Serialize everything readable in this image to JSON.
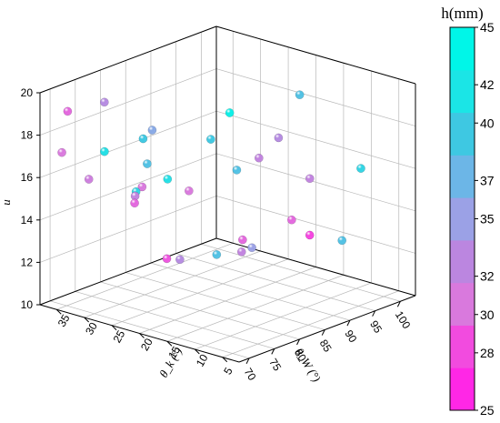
{
  "chart_data": {
    "type": "scatter",
    "title": "",
    "x_axis": {
      "label": "θ_W (°)",
      "range": [
        68,
        103
      ],
      "ticks": [
        70,
        75,
        80,
        85,
        90,
        95,
        100
      ],
      "tick_labels": [
        "70",
        "75",
        "80",
        "85",
        "90",
        "95",
        "100"
      ]
    },
    "y_axis": {
      "label": "θ_k (°)",
      "range": [
        2,
        38
      ],
      "ticks": [
        5,
        10,
        15,
        20,
        25,
        30,
        35
      ],
      "tick_labels": [
        "5",
        "10",
        "15",
        "20",
        "25",
        "30",
        "35"
      ]
    },
    "z_axis": {
      "label": "u",
      "range": [
        10,
        20
      ],
      "ticks": [
        10,
        12,
        14,
        16,
        18,
        20
      ],
      "tick_labels": [
        "10",
        "12",
        "14",
        "16",
        "18",
        "20"
      ]
    },
    "colorbar": {
      "title": "h(mm)",
      "range": [
        25,
        45
      ],
      "ticks": [
        25,
        28,
        30,
        32,
        35,
        37,
        40,
        42,
        45
      ],
      "tick_labels": [
        "25",
        "28",
        "30",
        "32",
        "35",
        "37",
        "40",
        "42",
        "45"
      ],
      "colors": [
        "#ff27e6",
        "#f24bdf",
        "#d979dd",
        "#bb86e0",
        "#9ba1e6",
        "#6cb6e7",
        "#3ec8e2",
        "#1be5e6",
        "#00f6e8"
      ]
    },
    "grid": true,
    "points": [
      {
        "x": 72.0,
        "y": 30.0,
        "z": 19.8,
        "h": 33
      },
      {
        "x": 68.0,
        "y": 33.0,
        "z": 19.5,
        "h": 29
      },
      {
        "x": 72.0,
        "y": 23.0,
        "z": 18.6,
        "h": 40
      },
      {
        "x": 69.5,
        "y": 22.0,
        "z": 16.4,
        "h": 41
      },
      {
        "x": 68.5,
        "y": 34.5,
        "z": 17.4,
        "h": 30
      },
      {
        "x": 76.0,
        "y": 25.0,
        "z": 18.5,
        "h": 36
      },
      {
        "x": 75.0,
        "y": 25.0,
        "z": 17.0,
        "h": 39
      },
      {
        "x": 78.3,
        "y": 16.5,
        "z": 18.5,
        "h": 40
      },
      {
        "x": 81.5,
        "y": 16.0,
        "z": 19.5,
        "h": 44
      },
      {
        "x": 78.5,
        "y": 24.5,
        "z": 16.0,
        "h": 42
      },
      {
        "x": 80.0,
        "y": 22.0,
        "z": 15.5,
        "h": 30
      },
      {
        "x": 74.0,
        "y": 25.0,
        "z": 16.0,
        "h": 30
      },
      {
        "x": 78.0,
        "y": 30.0,
        "z": 14.5,
        "h": 29
      },
      {
        "x": 84.0,
        "y": 17.0,
        "z": 16.5,
        "h": 39
      },
      {
        "x": 77.0,
        "y": 29.0,
        "z": 15.0,
        "h": 32
      },
      {
        "x": 77.5,
        "y": 35.0,
        "z": 16.6,
        "h": 42
      },
      {
        "x": 75.5,
        "y": 36.0,
        "z": 15.4,
        "h": 31
      },
      {
        "x": 91.0,
        "y": 12.0,
        "z": 19.8,
        "h": 39
      },
      {
        "x": 89.0,
        "y": 14.0,
        "z": 17.8,
        "h": 33
      },
      {
        "x": 89.5,
        "y": 18.0,
        "z": 16.5,
        "h": 32
      },
      {
        "x": 80.0,
        "y": 26.0,
        "z": 12.0,
        "h": 28
      },
      {
        "x": 81.5,
        "y": 25.0,
        "z": 11.9,
        "h": 33
      },
      {
        "x": 85.5,
        "y": 22.0,
        "z": 12.0,
        "h": 39
      },
      {
        "x": 93.0,
        "y": 12.0,
        "z": 13.0,
        "h": 27
      },
      {
        "x": 89.0,
        "y": 20.5,
        "z": 12.5,
        "h": 29
      },
      {
        "x": 91.0,
        "y": 22.5,
        "z": 11.6,
        "h": 32
      },
      {
        "x": 92.5,
        "y": 22.0,
        "z": 11.7,
        "h": 35
      },
      {
        "x": 96.0,
        "y": 18.0,
        "z": 13.0,
        "h": 29
      },
      {
        "x": 98.5,
        "y": 17.0,
        "z": 14.8,
        "h": 32
      },
      {
        "x": 101.5,
        "y": 10.5,
        "z": 15.5,
        "h": 41
      },
      {
        "x": 100.5,
        "y": 13.0,
        "z": 12.0,
        "h": 39
      }
    ]
  }
}
